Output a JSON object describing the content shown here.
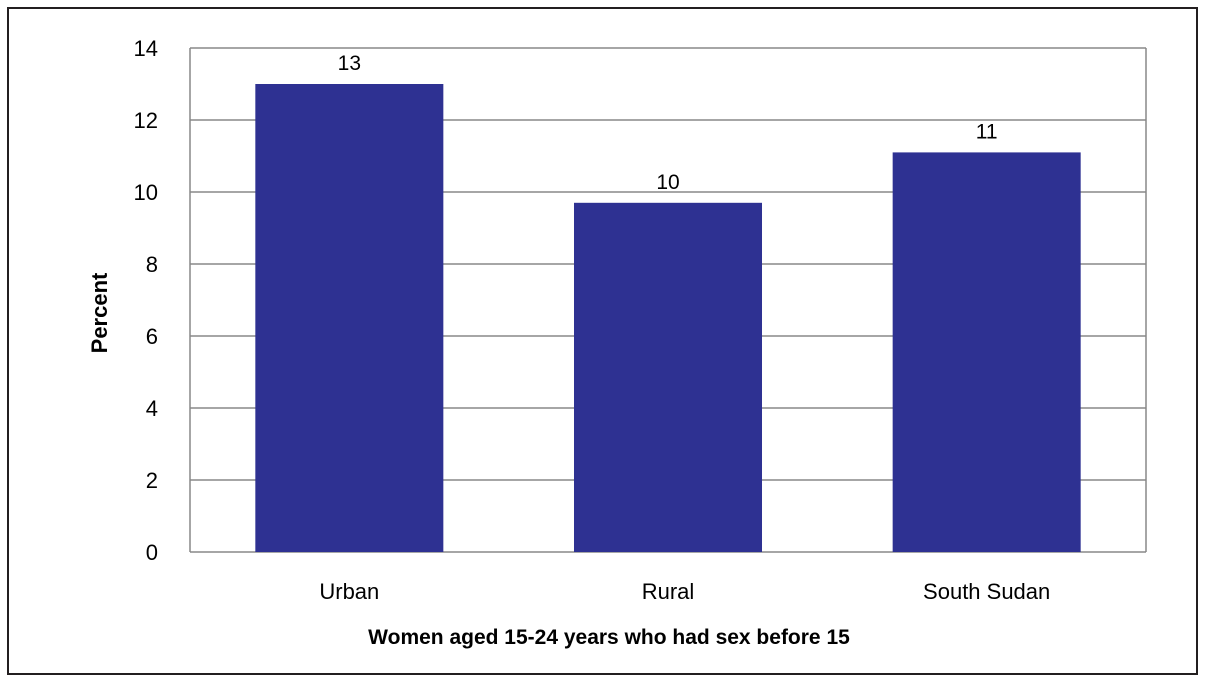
{
  "chart_data": {
    "type": "bar",
    "title": "",
    "categories": [
      "Urban",
      "Rural",
      "South Sudan"
    ],
    "values": [
      13,
      9.7,
      11.1
    ],
    "data_labels": [
      "13",
      "10",
      "11"
    ],
    "xlabel": "Women aged 15-24 years who had sex before 15",
    "ylabel": "Percent",
    "ylim": [
      0,
      14
    ],
    "yticks": [
      0,
      2,
      4,
      6,
      8,
      10,
      12,
      14
    ],
    "grid": true,
    "legend": "none",
    "bar_color": "#2e3192",
    "grid_color": "#888888"
  }
}
